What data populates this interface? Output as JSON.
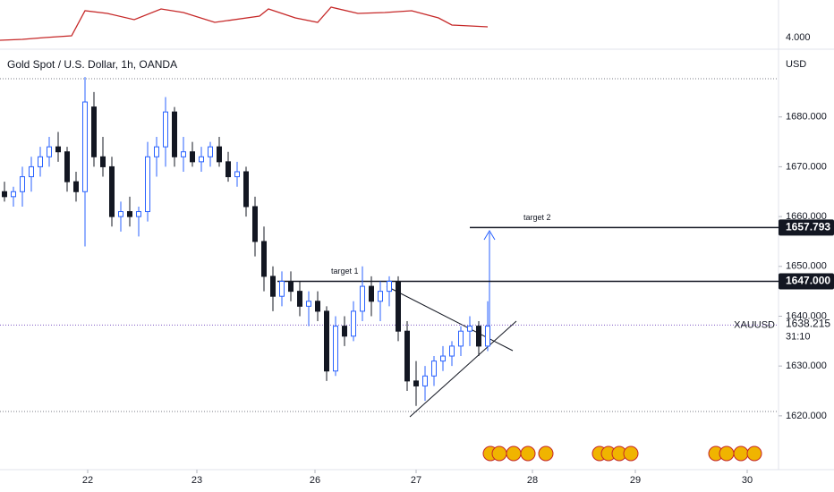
{
  "chart_data": {
    "type": "candlestick",
    "title": "Gold Spot / U.S. Dollar, 1h, OANDA",
    "currency": "USD",
    "symbol": "XAUUSD",
    "countdown": "31:10",
    "colors": {
      "up": "#2962ff",
      "down": "#131722"
    },
    "x": [
      0.5,
      1.5,
      2.5,
      3.5,
      4.5,
      5.5,
      6.5,
      7.5,
      8.5,
      9.5,
      10.5,
      11.5,
      12.5,
      13.5,
      14.5,
      15.5,
      16.5,
      17.5,
      18.5,
      19.5,
      20.5,
      21.5,
      22.5,
      23.5,
      24.5,
      25.5,
      26.5,
      27.5,
      28.5,
      29.5,
      30.5,
      31.5,
      32.5,
      33.5,
      34.5,
      35.5,
      36.5,
      37.5,
      38.5,
      39.5,
      40.5,
      41.5,
      42.5,
      43.5,
      44.5,
      45.5,
      46.5,
      47.5,
      48.5,
      49.5,
      50.5,
      51.5,
      52.5,
      53.5,
      54.5
    ],
    "open": [
      1665,
      1664,
      1665,
      1668,
      1670,
      1672,
      1674,
      1673,
      1667,
      1665,
      1682,
      1672,
      1670,
      1660,
      1661,
      1660,
      1661,
      1672,
      1674,
      1681,
      1672,
      1673,
      1671,
      1672,
      1674,
      1671,
      1668,
      1669,
      1662,
      1655,
      1648,
      1644,
      1647,
      1645,
      1642,
      1643,
      1641,
      1629,
      1638,
      1636,
      1641,
      1646,
      1643,
      1645,
      1647,
      1637,
      1627,
      1626,
      1628,
      1631,
      1632,
      1634,
      1637,
      1638,
      1634
    ],
    "high": [
      1667,
      1666,
      1670,
      1672,
      1674,
      1676,
      1677,
      1674,
      1669,
      1688,
      1685,
      1676,
      1672,
      1663,
      1664,
      1662,
      1675,
      1676,
      1684,
      1682,
      1676,
      1675,
      1674,
      1675,
      1676,
      1673,
      1671,
      1670,
      1664,
      1658,
      1650,
      1649,
      1649,
      1647,
      1645,
      1645,
      1642,
      1640,
      1640,
      1643,
      1650,
      1648,
      1647,
      1648,
      1648,
      1639,
      1631,
      1630,
      1632,
      1634,
      1635,
      1638,
      1640,
      1639,
      1643
    ],
    "low": [
      1663,
      1662,
      1662,
      1665,
      1668,
      1670,
      1671,
      1665,
      1663,
      1654,
      1670,
      1668,
      1658,
      1657,
      1658,
      1656,
      1659,
      1668,
      1670,
      1670,
      1669,
      1670,
      1669,
      1670,
      1670,
      1667,
      1666,
      1660,
      1652,
      1645,
      1641,
      1642,
      1643,
      1640,
      1638,
      1639,
      1627,
      1628,
      1634,
      1635,
      1639,
      1640,
      1639,
      1642,
      1635,
      1625,
      1622,
      1623,
      1626,
      1629,
      1630,
      1632,
      1634,
      1632,
      1633
    ],
    "close": [
      1664,
      1665,
      1668,
      1670,
      1672,
      1674,
      1673,
      1667,
      1665,
      1683,
      1672,
      1670,
      1660,
      1661,
      1660,
      1661,
      1672,
      1674,
      1681,
      1672,
      1673,
      1671,
      1672,
      1674,
      1671,
      1668,
      1669,
      1662,
      1655,
      1648,
      1644,
      1647,
      1645,
      1642,
      1643,
      1641,
      1629,
      1638,
      1636,
      1641,
      1646,
      1643,
      1645,
      1647,
      1637,
      1627,
      1626,
      1628,
      1631,
      1632,
      1634,
      1637,
      1638,
      1634,
      1638
    ],
    "xlim": [
      0,
      87
    ],
    "xticks": [
      {
        "value": 9.8,
        "label": "22"
      },
      {
        "value": 22,
        "label": "23"
      },
      {
        "value": 35.2,
        "label": "26"
      },
      {
        "value": 46.5,
        "label": "27"
      },
      {
        "value": 59.5,
        "label": "28"
      },
      {
        "value": 71,
        "label": "29"
      },
      {
        "value": 83.5,
        "label": "30"
      }
    ],
    "ylim": [
      1609.2,
      1693.6
    ],
    "yticks": [
      {
        "value": 1620,
        "label": "1620.000"
      },
      {
        "value": 1630,
        "label": "1630.000"
      },
      {
        "value": 1640,
        "label": "1640.000"
      },
      {
        "value": 1650,
        "label": "1650.000"
      },
      {
        "value": 1660,
        "label": "1660.000"
      },
      {
        "value": 1670,
        "label": "1670.000"
      },
      {
        "value": 1680,
        "label": "1680.000"
      }
    ],
    "last_price": {
      "value": 1638.215,
      "label": "1638.215"
    },
    "targets": [
      {
        "name": "target 1",
        "value": 1647,
        "label": "1647.000",
        "from": 31
      },
      {
        "name": "target 2",
        "value": 1657.793,
        "label": "1657.793",
        "from": 52.5
      }
    ],
    "indicator": {
      "x": [
        0,
        2.5,
        5,
        8,
        9.5,
        12,
        15,
        18,
        20.5,
        24,
        29,
        30,
        33,
        35.5,
        37,
        40,
        43,
        46,
        49,
        50.5,
        54.5
      ],
      "values": [
        3.94,
        3.96,
        4.0,
        4.04,
        4.6,
        4.54,
        4.4,
        4.64,
        4.56,
        4.34,
        4.48,
        4.64,
        4.44,
        4.34,
        4.68,
        4.54,
        4.56,
        4.6,
        4.44,
        4.28,
        4.24
      ],
      "color": "#c62828",
      "ylim": [
        3.8,
        4.8
      ],
      "yticks": [
        {
          "value": 4,
          "label": "4.000"
        }
      ]
    }
  }
}
